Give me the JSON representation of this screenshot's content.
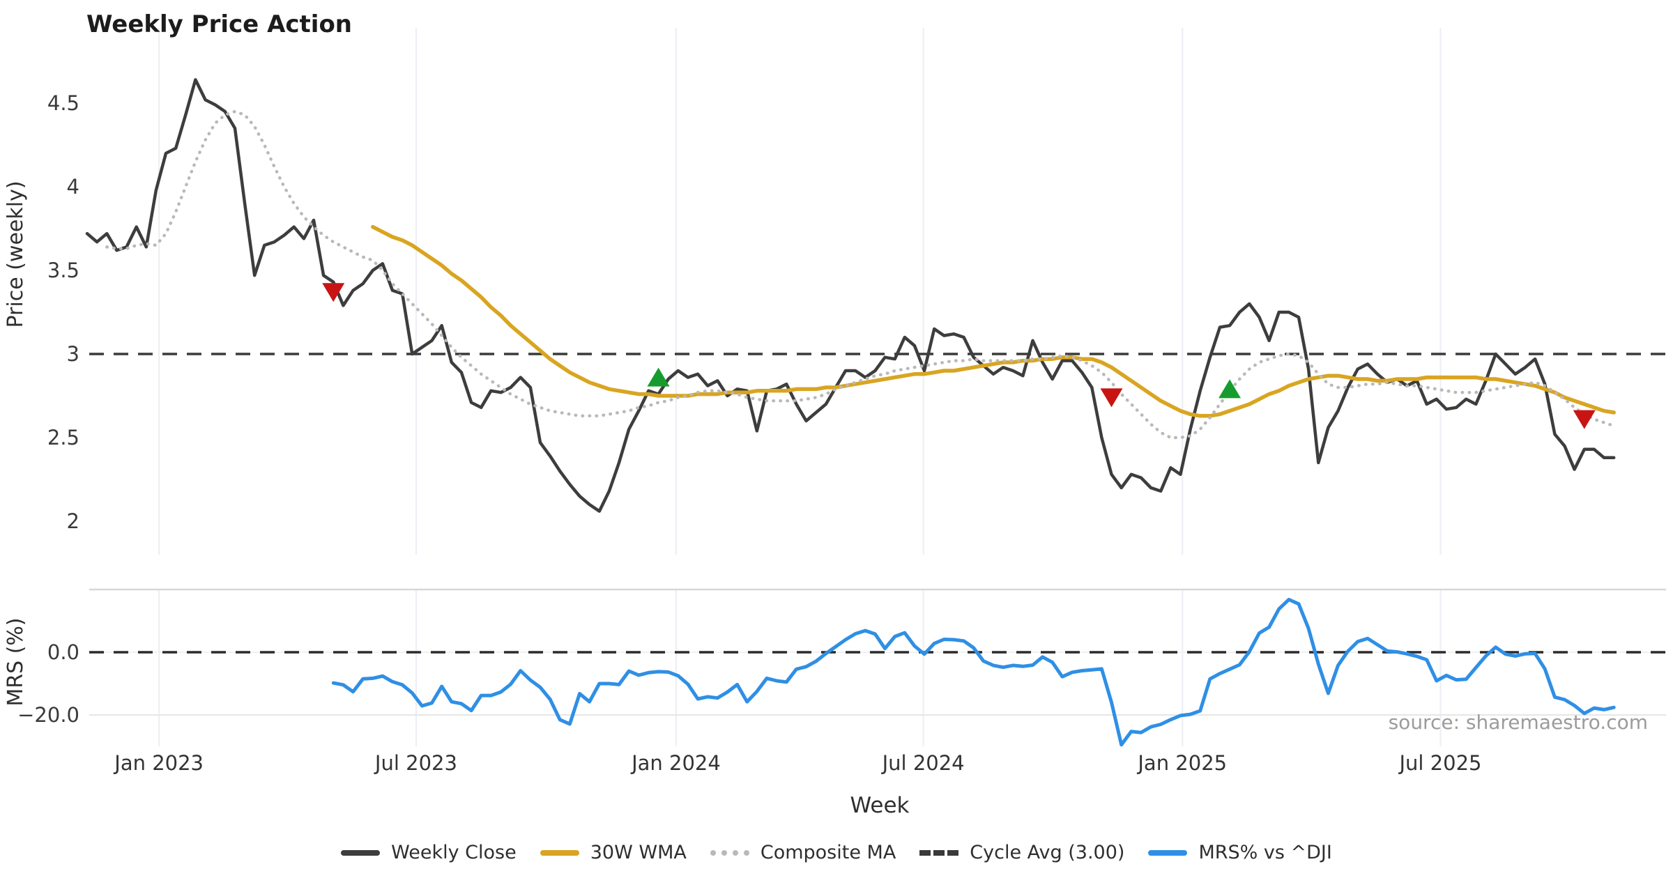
{
  "title": "Weekly Price Action",
  "source": "source: sharemaestro.com",
  "price_axis": {
    "label": "Price (weekly)",
    "ticks": [
      {
        "v": 2,
        "label": "2"
      },
      {
        "v": 2.5,
        "label": "2.5"
      },
      {
        "v": 3,
        "label": "3"
      },
      {
        "v": 3.5,
        "label": "3.5"
      },
      {
        "v": 4,
        "label": "4"
      },
      {
        "v": 4.5,
        "label": "4.5"
      }
    ],
    "range": [
      1.8,
      4.95
    ]
  },
  "mrs_axis": {
    "label": "MRS (%)",
    "ticks": [
      {
        "v": 0,
        "label": "0.0"
      },
      {
        "v": -20,
        "label": "−20.0"
      }
    ],
    "range": [
      -30,
      20
    ]
  },
  "x_axis": {
    "label": "Week",
    "ticks": [
      {
        "label": "Jan 2023",
        "week": 7.3
      },
      {
        "label": "Jul 2023",
        "week": 33.4
      },
      {
        "label": "Jan 2024",
        "week": 59.8
      },
      {
        "label": "Jul 2024",
        "week": 84.9
      },
      {
        "label": "Jan 2025",
        "week": 111.2
      },
      {
        "label": "Jul 2025",
        "week": 137.4
      }
    ]
  },
  "legend": [
    {
      "label": "Weekly Close",
      "color": "#3d3d3d",
      "style": "solid"
    },
    {
      "label": "30W WMA",
      "color": "#d9a521",
      "style": "solid"
    },
    {
      "label": "Composite MA",
      "color": "#b9b9b9",
      "style": "dotted"
    },
    {
      "label": "Cycle Avg (3.00)",
      "color": "#3a3a3a",
      "style": "dashed"
    },
    {
      "label": "MRS% vs ^DJI",
      "color": "#2f8fe5",
      "style": "solid"
    }
  ],
  "chart_data": {
    "type": "line",
    "x_unit": "week_index",
    "grid": "vertical-faint",
    "legend_position": "bottom-center",
    "reference_lines": [
      {
        "panel": "price",
        "value": 3.0,
        "label": "Cycle Avg (3.00)",
        "style": "dashed",
        "color": "#3a3a3a"
      },
      {
        "panel": "mrs",
        "value": 0.0,
        "label": "0.0",
        "style": "dashed",
        "color": "#2b2b2b"
      }
    ],
    "signals": {
      "sell": [
        {
          "week": 25,
          "price": 3.37
        },
        {
          "week": 104,
          "price": 2.74
        },
        {
          "week": 152,
          "price": 2.61
        }
      ],
      "buy": [
        {
          "week": 58,
          "price": 2.86
        },
        {
          "week": 116,
          "price": 2.79
        }
      ],
      "sell_color": "#c91414",
      "buy_color": "#169c2e"
    },
    "series": [
      {
        "name": "Weekly Close",
        "panel": "price",
        "color": "#3d3d3d",
        "style": "solid",
        "width": 4.5,
        "start_week": 0,
        "values": [
          3.72,
          3.67,
          3.72,
          3.62,
          3.64,
          3.76,
          3.64,
          3.98,
          4.2,
          4.23,
          4.43,
          4.64,
          4.52,
          4.49,
          4.45,
          4.35,
          3.9,
          3.47,
          3.65,
          3.67,
          3.71,
          3.76,
          3.69,
          3.8,
          3.47,
          3.43,
          3.29,
          3.38,
          3.42,
          3.5,
          3.54,
          3.38,
          3.36,
          3.0,
          3.04,
          3.08,
          3.17,
          2.95,
          2.89,
          2.71,
          2.68,
          2.78,
          2.77,
          2.8,
          2.86,
          2.8,
          2.47,
          2.39,
          2.3,
          2.22,
          2.15,
          2.1,
          2.06,
          2.18,
          2.35,
          2.55,
          2.66,
          2.78,
          2.76,
          2.85,
          2.9,
          2.86,
          2.88,
          2.81,
          2.84,
          2.75,
          2.79,
          2.78,
          2.54,
          2.78,
          2.79,
          2.82,
          2.7,
          2.6,
          2.65,
          2.7,
          2.8,
          2.9,
          2.9,
          2.86,
          2.9,
          2.98,
          2.97,
          3.1,
          3.05,
          2.9,
          3.15,
          3.11,
          3.12,
          3.1,
          2.98,
          2.93,
          2.88,
          2.92,
          2.9,
          2.87,
          3.08,
          2.95,
          2.85,
          2.96,
          2.96,
          2.89,
          2.8,
          2.5,
          2.28,
          2.2,
          2.28,
          2.26,
          2.2,
          2.18,
          2.32,
          2.28,
          2.55,
          2.78,
          2.98,
          3.16,
          3.17,
          3.25,
          3.3,
          3.22,
          3.08,
          3.25,
          3.25,
          3.22,
          2.91,
          2.35,
          2.56,
          2.66,
          2.8,
          2.91,
          2.94,
          2.88,
          2.83,
          2.85,
          2.81,
          2.84,
          2.7,
          2.73,
          2.67,
          2.68,
          2.73,
          2.7,
          2.84,
          3.0,
          2.94,
          2.88,
          2.92,
          2.97,
          2.82,
          2.52,
          2.45,
          2.31,
          2.43,
          2.43,
          2.38,
          2.38
        ]
      },
      {
        "name": "30W WMA",
        "panel": "price",
        "color": "#d9a521",
        "style": "solid",
        "width": 5.5,
        "start_week": 29,
        "values": [
          3.76,
          3.73,
          3.7,
          3.68,
          3.65,
          3.61,
          3.57,
          3.53,
          3.48,
          3.44,
          3.39,
          3.34,
          3.28,
          3.23,
          3.17,
          3.12,
          3.07,
          3.02,
          2.97,
          2.93,
          2.89,
          2.86,
          2.83,
          2.81,
          2.79,
          2.78,
          2.77,
          2.76,
          2.76,
          2.75,
          2.75,
          2.75,
          2.75,
          2.76,
          2.76,
          2.76,
          2.77,
          2.77,
          2.77,
          2.78,
          2.78,
          2.78,
          2.78,
          2.79,
          2.79,
          2.79,
          2.8,
          2.8,
          2.81,
          2.82,
          2.83,
          2.84,
          2.85,
          2.86,
          2.87,
          2.88,
          2.88,
          2.89,
          2.9,
          2.9,
          2.91,
          2.92,
          2.93,
          2.94,
          2.95,
          2.95,
          2.96,
          2.96,
          2.97,
          2.97,
          2.98,
          2.98,
          2.97,
          2.97,
          2.95,
          2.92,
          2.88,
          2.84,
          2.8,
          2.76,
          2.72,
          2.69,
          2.66,
          2.64,
          2.63,
          2.63,
          2.64,
          2.66,
          2.68,
          2.7,
          2.73,
          2.76,
          2.78,
          2.81,
          2.83,
          2.85,
          2.86,
          2.87,
          2.87,
          2.86,
          2.85,
          2.85,
          2.84,
          2.84,
          2.85,
          2.85,
          2.85,
          2.86,
          2.86,
          2.86,
          2.86,
          2.86,
          2.86,
          2.85,
          2.85,
          2.84,
          2.83,
          2.82,
          2.81,
          2.79,
          2.77,
          2.74,
          2.72,
          2.7,
          2.68,
          2.66,
          2.65
        ]
      },
      {
        "name": "Composite MA",
        "panel": "price",
        "color": "#b9b9b9",
        "style": "dotted",
        "width": 4.5,
        "start_week": 2,
        "values": [
          3.64,
          3.63,
          3.63,
          3.65,
          3.66,
          3.65,
          3.72,
          3.85,
          4.0,
          4.15,
          4.28,
          4.38,
          4.43,
          4.45,
          4.43,
          4.36,
          4.25,
          4.12,
          4.0,
          3.9,
          3.82,
          3.76,
          3.71,
          3.67,
          3.64,
          3.61,
          3.58,
          3.56,
          3.5,
          3.42,
          3.36,
          3.3,
          3.24,
          3.18,
          3.11,
          3.04,
          2.98,
          2.93,
          2.88,
          2.84,
          2.8,
          2.76,
          2.73,
          2.7,
          2.68,
          2.66,
          2.65,
          2.64,
          2.63,
          2.63,
          2.63,
          2.64,
          2.65,
          2.66,
          2.68,
          2.69,
          2.71,
          2.72,
          2.74,
          2.75,
          2.77,
          2.78,
          2.78,
          2.77,
          2.76,
          2.74,
          2.73,
          2.72,
          2.72,
          2.72,
          2.72,
          2.73,
          2.74,
          2.76,
          2.79,
          2.81,
          2.83,
          2.85,
          2.87,
          2.88,
          2.9,
          2.91,
          2.92,
          2.93,
          2.94,
          2.95,
          2.96,
          2.96,
          2.97,
          2.96,
          2.96,
          2.96,
          2.96,
          2.96,
          2.97,
          2.97,
          2.98,
          2.99,
          2.98,
          2.96,
          2.93,
          2.89,
          2.83,
          2.76,
          2.7,
          2.64,
          2.58,
          2.53,
          2.5,
          2.5,
          2.51,
          2.55,
          2.62,
          2.7,
          2.78,
          2.85,
          2.91,
          2.95,
          2.97,
          2.99,
          3.0,
          2.99,
          2.95,
          2.88,
          2.82,
          2.8,
          2.8,
          2.81,
          2.82,
          2.82,
          2.83,
          2.82,
          2.81,
          2.81,
          2.8,
          2.79,
          2.78,
          2.77,
          2.77,
          2.77,
          2.78,
          2.79,
          2.8,
          2.81,
          2.82,
          2.83,
          2.81,
          2.77,
          2.73,
          2.68,
          2.64,
          2.61,
          2.59,
          2.57
        ]
      },
      {
        "name": "MRS% vs ^DJI",
        "panel": "mrs",
        "color": "#2f8fe5",
        "style": "solid",
        "width": 5,
        "start_week": 25,
        "values": [
          -9.8,
          -10.4,
          -12.6,
          -8.5,
          -8.3,
          -7.6,
          -9.4,
          -10.4,
          -13.0,
          -17.1,
          -16.2,
          -10.9,
          -15.8,
          -16.4,
          -18.6,
          -13.8,
          -13.8,
          -12.7,
          -10.2,
          -5.9,
          -8.9,
          -11.2,
          -15.0,
          -21.5,
          -22.9,
          -13.2,
          -15.8,
          -10.0,
          -10.0,
          -10.3,
          -6.0,
          -7.3,
          -6.5,
          -6.2,
          -6.3,
          -7.5,
          -10.2,
          -14.9,
          -14.2,
          -14.6,
          -12.7,
          -10.3,
          -15.8,
          -12.5,
          -8.3,
          -9.1,
          -9.5,
          -5.4,
          -4.6,
          -2.9,
          -0.4,
          1.8,
          4.0,
          5.9,
          6.9,
          5.8,
          1.2,
          5.0,
          6.2,
          2.0,
          -0.6,
          2.8,
          4.1,
          4.0,
          3.6,
          1.4,
          -2.8,
          -4.2,
          -4.8,
          -4.2,
          -4.5,
          -4.1,
          -1.5,
          -3.2,
          -7.8,
          -6.4,
          -5.9,
          -5.6,
          -5.3,
          -16.0,
          -29.5,
          -25.3,
          -25.6,
          -23.8,
          -23.0,
          -21.5,
          -20.2,
          -19.8,
          -18.7,
          -8.5,
          -6.8,
          -5.4,
          -4.0,
          0.2,
          6.1,
          8.0,
          13.8,
          16.8,
          15.4,
          7.6,
          -3.8,
          -13.1,
          -4.2,
          0.3,
          3.4,
          4.4,
          2.4,
          0.4,
          0.1,
          -0.5,
          -1.3,
          -2.4,
          -9.1,
          -7.4,
          -8.8,
          -8.6,
          -4.9,
          -1.2,
          1.6,
          -0.6,
          -1.2,
          -0.5,
          -0.4,
          -5.3,
          -14.3,
          -15.1,
          -17.0,
          -19.5,
          -17.8,
          -18.3,
          -17.6
        ]
      }
    ]
  }
}
